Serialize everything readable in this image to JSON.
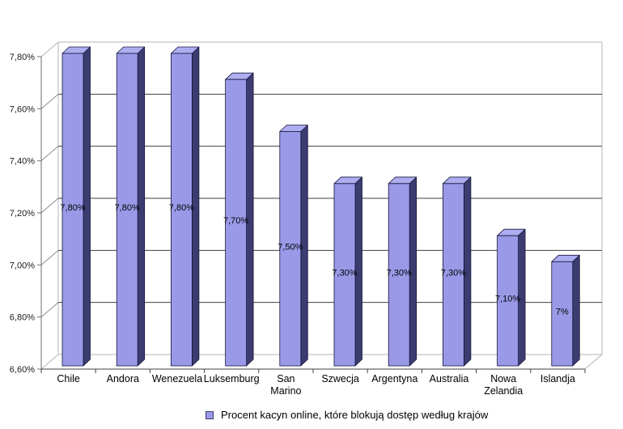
{
  "chart_data": {
    "type": "bar",
    "projection": "3d",
    "title": "",
    "xlabel": "",
    "ylabel": "",
    "categories": [
      "Chile",
      "Andora",
      "Wenezuela",
      "Luksemburg",
      "San Marino",
      "Szwecja",
      "Argentyna",
      "Australia",
      "Nowa Zelandia",
      "Islandja"
    ],
    "values": [
      7.8,
      7.8,
      7.8,
      7.7,
      7.5,
      7.3,
      7.3,
      7.3,
      7.1,
      7.0
    ],
    "value_labels": [
      "7,80%",
      "7,80%",
      "7,80%",
      "7,70%",
      "7,50%",
      "7,30%",
      "7,30%",
      "7,30%",
      "7,10%",
      "7%"
    ],
    "ylim": [
      6.6,
      7.8
    ],
    "y_ticks": [
      {
        "label": "7,80%",
        "value": 7.8
      },
      {
        "label": "7,60%",
        "value": 7.6
      },
      {
        "label": "7,40%",
        "value": 7.4
      },
      {
        "label": "7,20%",
        "value": 7.2
      },
      {
        "label": "7,00%",
        "value": 7.0
      },
      {
        "label": "6,80%",
        "value": 6.8
      },
      {
        "label": "6,60%",
        "value": 6.6
      }
    ],
    "grid": true,
    "legend": {
      "position": "bottom",
      "label": "Procent kacyn online, które blokują dostęp według krajów"
    },
    "colors": {
      "bar_front": "#9999e8",
      "bar_top": "#adadf0",
      "bar_side": "#3c3c70",
      "bar_outline": "#16163c",
      "gridline": "#404040",
      "axis": "#404040",
      "y_axis": "#6b6b6b",
      "wall_edge": "#b4b4b4",
      "tick": "#707070",
      "label_text": "#000000",
      "axis_label_text": "#1a1a1a"
    }
  }
}
